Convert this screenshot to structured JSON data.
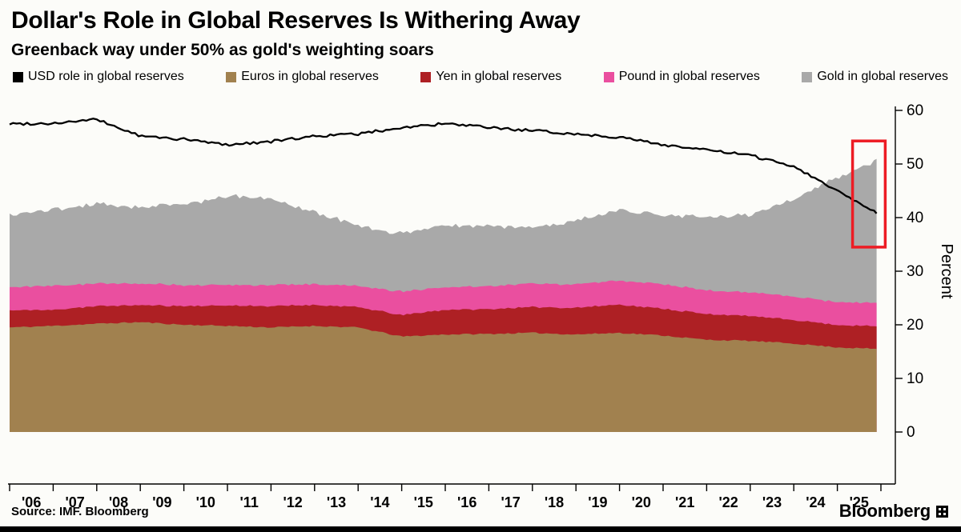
{
  "chart_data": {
    "type": "area",
    "stacked": true,
    "title": "Dollar's Role in Global Reserves Is Withering Away",
    "subtitle": "Greenback way under 50% as gold's weighting soars",
    "ylabel": "Percent",
    "ylim": [
      0,
      60
    ],
    "yticks": [
      0,
      10,
      20,
      30,
      40,
      50,
      60
    ],
    "grid": false,
    "legend_position": "top",
    "x": [
      2006,
      2007,
      2008,
      2009,
      2010,
      2011,
      2012,
      2013,
      2014,
      2015,
      2016,
      2017,
      2018,
      2019,
      2020,
      2021,
      2022,
      2023,
      2024,
      2025,
      2025.9
    ],
    "x_tick_labels": [
      "'06",
      "'07",
      "'08",
      "'09",
      "'10",
      "'11",
      "'12",
      "'13",
      "'14",
      "'15",
      "'16",
      "'17",
      "'18",
      "'19",
      "'20",
      "'21",
      "'22",
      "'23",
      "'24",
      "'25"
    ],
    "series": [
      {
        "name": "USD role in global reserves",
        "type": "line",
        "color": "#000000",
        "values": [
          57.5,
          57.6,
          58.3,
          55.2,
          54.6,
          53.6,
          54.2,
          55.2,
          55.6,
          56.8,
          57.5,
          56.8,
          56.2,
          55.6,
          55.0,
          53.6,
          52.6,
          51.6,
          49.6,
          45.0,
          41.0
        ]
      },
      {
        "name": "Euros in global reserves",
        "type": "area-stacked",
        "color": "#a1814f",
        "values": [
          19.5,
          19.8,
          20.2,
          20.5,
          20.0,
          19.8,
          19.5,
          19.8,
          19.5,
          17.8,
          18.2,
          18.3,
          18.5,
          18.2,
          18.5,
          18.0,
          17.2,
          17.0,
          16.5,
          15.8,
          15.5
        ]
      },
      {
        "name": "Yen in global reserves",
        "type": "area-stacked",
        "color": "#ae2024",
        "values": [
          3.2,
          3.0,
          3.3,
          3.2,
          3.5,
          3.8,
          4.0,
          3.9,
          3.8,
          4.0,
          4.6,
          4.6,
          4.8,
          5.0,
          5.3,
          5.0,
          4.8,
          4.6,
          4.4,
          4.2,
          4.2
        ]
      },
      {
        "name": "Pound in global reserves",
        "type": "area-stacked",
        "color": "#ea4f9f",
        "values": [
          4.3,
          4.5,
          4.2,
          4.0,
          3.9,
          3.8,
          3.9,
          3.9,
          3.9,
          4.4,
          4.2,
          4.3,
          4.4,
          4.4,
          4.5,
          4.6,
          4.4,
          4.4,
          4.4,
          4.3,
          4.3
        ]
      },
      {
        "name": "Gold in global reserves",
        "type": "area-stacked",
        "color": "#a9a9a9",
        "values": [
          13.5,
          14.2,
          14.8,
          14.3,
          15.1,
          16.6,
          16.1,
          13.4,
          11.3,
          10.8,
          11.5,
          11.3,
          10.3,
          11.9,
          13.2,
          12.9,
          13.6,
          14.5,
          18.2,
          23.2,
          26.5
        ]
      }
    ],
    "annotation": {
      "type": "rect",
      "color": "#ed1c24",
      "x0": 2025.35,
      "x1": 2026.1,
      "y0": 34.5,
      "y1": 54.3
    }
  },
  "footer": {
    "source": "Source: IMF. Bloomberg",
    "brand": "Bloomberg"
  }
}
